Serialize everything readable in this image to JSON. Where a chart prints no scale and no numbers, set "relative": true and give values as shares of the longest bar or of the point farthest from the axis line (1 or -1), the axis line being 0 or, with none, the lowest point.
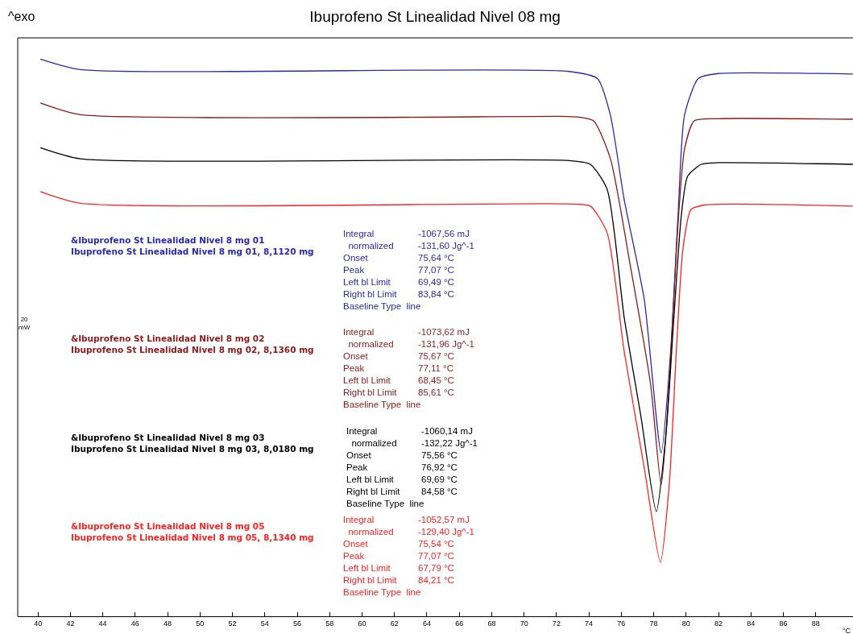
{
  "chart_data": {
    "type": "line",
    "title": "Ibuprofeno St Linealidad Nivel 08 mg",
    "xlabel": "°C",
    "relative": true,
    "grid": false,
    "marker": "none",
    "line_style": "solid",
    "tick_labels": "x",
    "xlim": [
      38.75,
      90.3
    ],
    "xticks": [
      40,
      42,
      44,
      46,
      48,
      50,
      52,
      54,
      56,
      58,
      60,
      62,
      64,
      66,
      68,
      70,
      72,
      74,
      76,
      78,
      80,
      82,
      84,
      86,
      88
    ],
    "series": [
      {
        "color": "#2a2ab0",
        "x": [
          40.15,
          42.63,
          72.7,
          74.53,
          75.33,
          76.17,
          77.42,
          78.46,
          79.05,
          79.5,
          79.9,
          80.75,
          81.99,
          90.29
        ],
        "values": [
          1.0,
          0.981,
          0.978,
          0.965,
          0.899,
          0.749,
          0.568,
          0.293,
          0.477,
          0.718,
          0.899,
          0.965,
          0.974,
          0.973
        ]
      },
      {
        "color": "#8b1a1a",
        "x": [
          40.15,
          42.63,
          72.65,
          73.29,
          74.29,
          75.33,
          76.57,
          77.81,
          78.46,
          78.96,
          79.4,
          79.9,
          80.5,
          81.99,
          90.29
        ],
        "values": [
          0.921,
          0.9,
          0.897,
          0.896,
          0.889,
          0.821,
          0.627,
          0.416,
          0.236,
          0.416,
          0.658,
          0.838,
          0.889,
          0.893,
          0.892
        ]
      },
      {
        "color": "#000000",
        "x": [
          40.15,
          42.63,
          72.65,
          74.09,
          75.13,
          76.17,
          77.22,
          78.16,
          78.76,
          79.25,
          79.7,
          80.1,
          80.94,
          81.99,
          90.29
        ],
        "values": [
          0.841,
          0.821,
          0.818,
          0.811,
          0.766,
          0.538,
          0.357,
          0.188,
          0.327,
          0.538,
          0.718,
          0.79,
          0.811,
          0.814,
          0.811
        ]
      },
      {
        "color": "#ff2020",
        "x": [
          40.15,
          42.63,
          72.65,
          74.09,
          75.13,
          76.17,
          77.42,
          78.41,
          78.96,
          79.4,
          79.8,
          80.3,
          81.14,
          90.29
        ],
        "values": [
          0.762,
          0.741,
          0.74,
          0.736,
          0.688,
          0.477,
          0.266,
          0.097,
          0.236,
          0.477,
          0.658,
          0.73,
          0.738,
          0.736
        ]
      }
    ],
    "annotations": [
      "^exo",
      "20\nmW",
      "&Ibuprofeno St Linealidad Nivel 8 mg 01\nIbuprofeno St Linealidad Nivel 8 mg 01, 8,1120 mg",
      "Integral\n  normalized\nOnset\nPeak\nLeft bl Limit\nRight bl Limit\nBaseline Type  line",
      "-1067,56 mJ\n-131,60 Jg^-1\n75,64 °C\n77,07 °C\n69,49 °C\n83,84 °C",
      "&Ibuprofeno St Linealidad Nivel 8 mg 02\nIbuprofeno St Linealidad Nivel 8 mg 02, 8,1360 mg",
      "Integral\n  normalized\nOnset\nPeak\nLeft bl Limit\nRight bl Limit\nBaseline Type  line",
      "-1073,62 mJ\n-131,96 Jg^-1\n75,67 °C\n77,11 °C\n68,45 °C\n85,61 °C",
      "&Ibuprofeno St Linealidad Nivel 8 mg 03\nIbuprofeno St Linealidad Nivel 8 mg 03, 8,0180 mg",
      "Integral\n  normalized\nOnset\nPeak\nLeft bl Limit\nRight bl Limit\nBaseline Type  line",
      "-1060,14 mJ\n-132,22 Jg^-1\n75,56 °C\n76,92 °C\n69,69 °C\n84,58 °C",
      "&Ibuprofeno St Linealidad Nivel 8 mg 05\nIbuprofeno St Linealidad Nivel 8 mg 05, 8,1340 mg",
      "Integral\n  normalized\nOnset\nPeak\nLeft bl Limit\nRight bl Limit\nBaseline Type  line",
      "-1052,57 mJ\n-129,40 Jg^-1\n75,54 °C\n77,07 °C\n67,79 °C\n84,21 °C"
    ]
  }
}
